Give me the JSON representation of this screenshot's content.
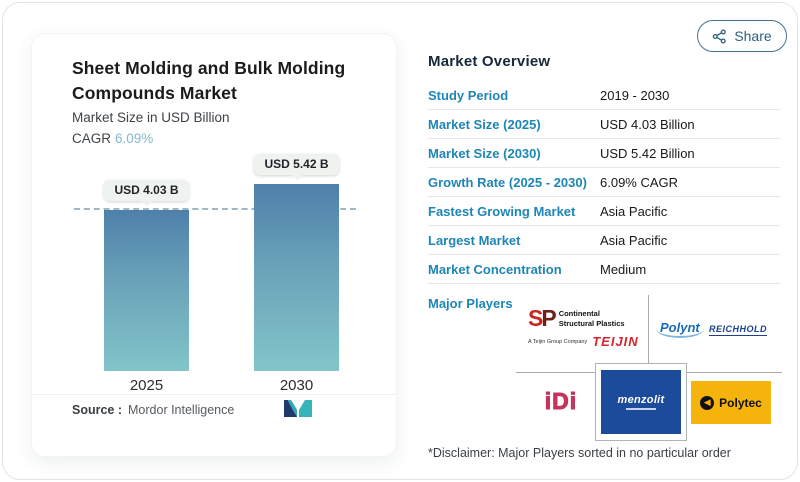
{
  "share": {
    "label": "Share"
  },
  "chart_panel": {
    "title": "Sheet Molding and Bulk Molding Compounds Market",
    "subtitle": "Market Size in USD Billion",
    "cagr_label": "CAGR",
    "cagr_value": "6.09%",
    "source_label": "Source :",
    "source_value": "Mordor Intelligence"
  },
  "chart_data": {
    "type": "bar",
    "title": "Sheet Molding and Bulk Molding Compounds Market",
    "ylabel": "Market Size in USD Billion",
    "categories": [
      "2025",
      "2030"
    ],
    "values": [
      4.03,
      5.42
    ],
    "bar_labels": [
      "USD 4.03 B",
      "USD 5.42 B"
    ],
    "baseline_value": 4.03,
    "cagr": "6.09%",
    "legend": "none",
    "grid": "off",
    "colors": {
      "bar_top": "#4e80aa",
      "bar_bottom": "#82c5c9",
      "baseline": "#9fb8c4"
    }
  },
  "overview": {
    "heading": "Market Overview",
    "rows": [
      {
        "label": "Study Period",
        "value": "2019 - 2030"
      },
      {
        "label": "Market Size (2025)",
        "value": "USD 4.03 Billion"
      },
      {
        "label": "Market Size (2030)",
        "value": "USD 5.42 Billion"
      },
      {
        "label": "Growth Rate (2025 - 2030)",
        "value": "6.09% CAGR"
      },
      {
        "label": "Fastest Growing Market",
        "value": "Asia Pacific"
      },
      {
        "label": "Largest Market",
        "value": "Asia Pacific"
      },
      {
        "label": "Market Concentration",
        "value": "Medium"
      }
    ]
  },
  "players": {
    "heading": "Major Players",
    "disclaimer": "*Disclaimer: Major Players sorted in no particular order",
    "logos": {
      "csp_mark_s": "S",
      "csp_mark_p": "P",
      "csp_name_line1": "Continental",
      "csp_name_line2": "Structural Plastics",
      "teijin_sub": "A Teijin Group Company",
      "teijin": "TEIJIN",
      "polynt": "Polynt",
      "reichhold": "REICHHOLD",
      "idi": "iDi",
      "menzolit": "menzolit",
      "polytec": "Polytec"
    }
  }
}
